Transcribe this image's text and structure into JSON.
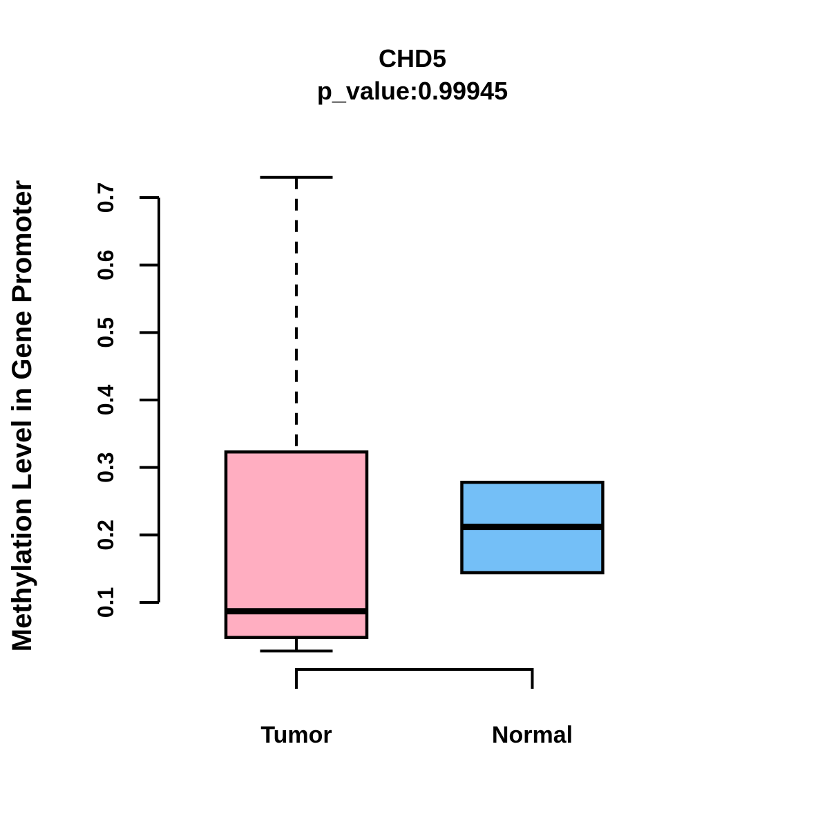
{
  "chart_data": {
    "type": "boxplot",
    "title": "CHD5",
    "subtitle": "p_value:0.99945",
    "ylabel": "Methylation Level in Gene Promoter",
    "xlabel": "",
    "categories": [
      "Tumor",
      "Normal"
    ],
    "axis": {
      "min": 0.1,
      "max": 0.7,
      "ticks": [
        0.1,
        0.2,
        0.3,
        0.4,
        0.5,
        0.6,
        0.7
      ],
      "tick_format_decimals": 1
    },
    "grid": false,
    "legend": null,
    "series": [
      {
        "name": "Tumor",
        "fill": "#FFAEC1",
        "whisker_low": 0.028,
        "q1": 0.048,
        "median": 0.087,
        "q3": 0.323,
        "whisker_high": 0.73
      },
      {
        "name": "Normal",
        "fill": "#74BFF7",
        "whisker_low": 0.144,
        "q1": 0.144,
        "median": 0.212,
        "q3": 0.278,
        "whisker_high": 0.278
      }
    ],
    "colors": {
      "stroke": "#000000",
      "text": "#000000",
      "background": "#FFFFFF"
    }
  }
}
